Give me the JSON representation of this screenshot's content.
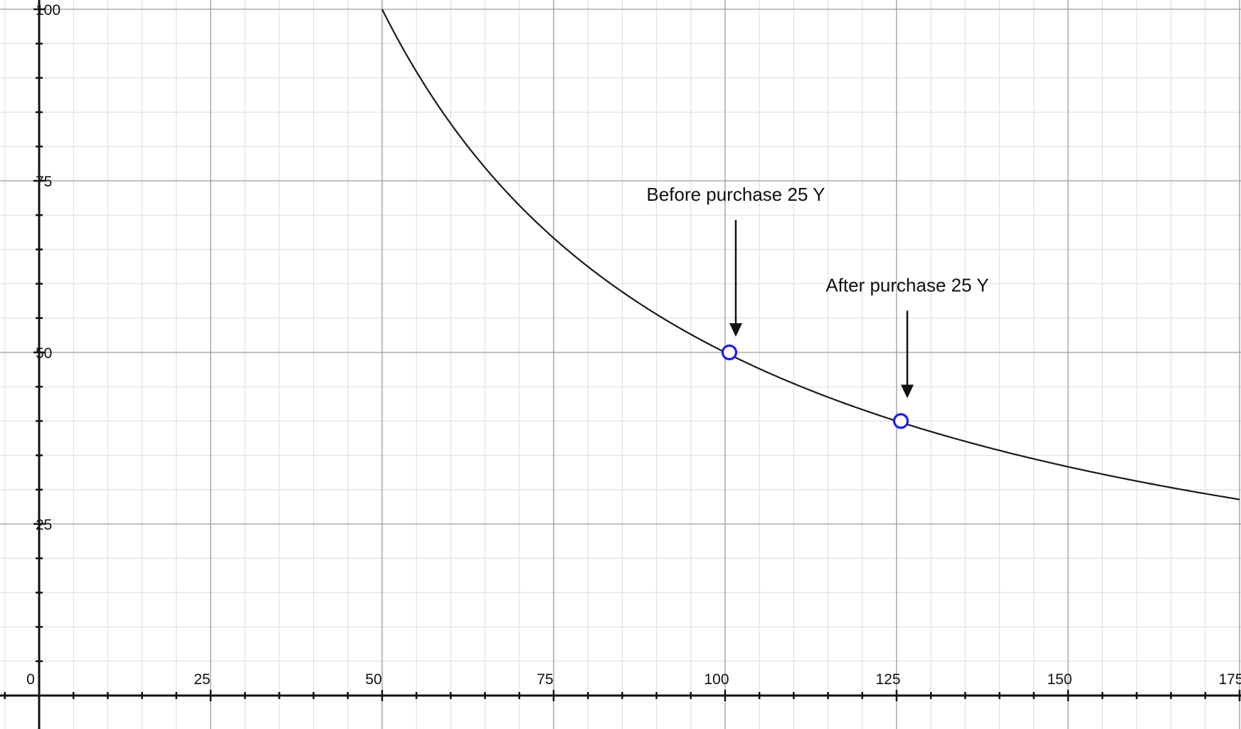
{
  "chart_data": {
    "type": "line",
    "title": "",
    "xlabel": "",
    "ylabel": "",
    "xlim": [
      -10,
      175
    ],
    "ylim": [
      -10,
      100
    ],
    "x_major_ticks": [
      0,
      25,
      50,
      75,
      100,
      125,
      150,
      175
    ],
    "x_tick_labels": [
      "0",
      "25",
      "50",
      "75",
      "100",
      "125",
      "150",
      "175"
    ],
    "y_major_ticks": [
      25,
      50,
      75,
      100
    ],
    "y_tick_labels": [
      "25",
      "50",
      "75",
      "100"
    ],
    "grid": {
      "major": 25,
      "minor": 5,
      "visible": true
    },
    "series": [
      {
        "curve": "y = 5000 / x",
        "x_start": 50,
        "x_end": 175,
        "color": "#1a1a1a"
      }
    ],
    "points": [
      {
        "x": 100,
        "y": 50,
        "color": "#1a1aff"
      },
      {
        "x": 125,
        "y": 40,
        "color": "#1a1aff"
      }
    ],
    "annotations": [
      {
        "text": "Before purchase 25 Y",
        "points_to": {
          "x": 100,
          "y": 50
        }
      },
      {
        "text": "After purchase 25 Y",
        "points_to": {
          "x": 125,
          "y": 40
        }
      }
    ]
  }
}
